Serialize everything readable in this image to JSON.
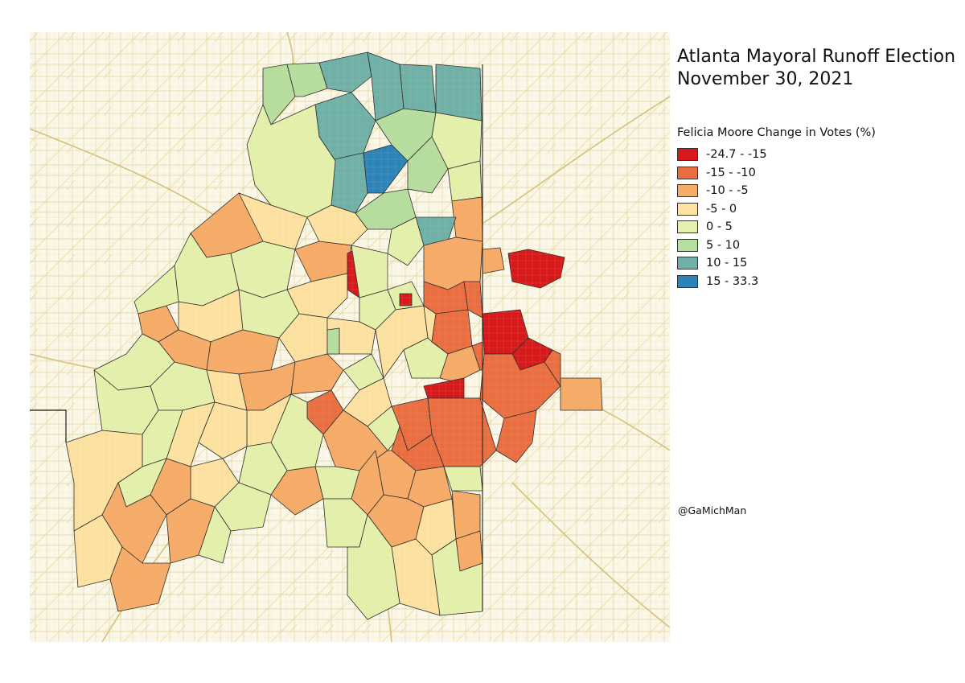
{
  "title": {
    "line1": "Atlanta Mayoral Runoff  Election",
    "line2": "November 30, 2021"
  },
  "legend": {
    "title": "Felicia Moore Change in Votes (%)",
    "classes": [
      {
        "label": "-24.7 - -15",
        "color": "#d7191c"
      },
      {
        "label": "-15 - -10",
        "color": "#ea6e42"
      },
      {
        "label": "-10 - -5",
        "color": "#f7ab69"
      },
      {
        "label": "-5 - 0",
        "color": "#fde2a1"
      },
      {
        "label": "0 - 5",
        "color": "#e4f1ad"
      },
      {
        "label": "5 - 10",
        "color": "#b5de9f"
      },
      {
        "label": "10 - 15",
        "color": "#6fb0a8"
      },
      {
        "label": "15 - 33.3",
        "color": "#2b83ba"
      }
    ]
  },
  "credit": "@GaMichMan",
  "colors": {
    "map_background": "#fbf8ea",
    "road": "#d9c988",
    "boundary": "#2b2b2b"
  }
}
